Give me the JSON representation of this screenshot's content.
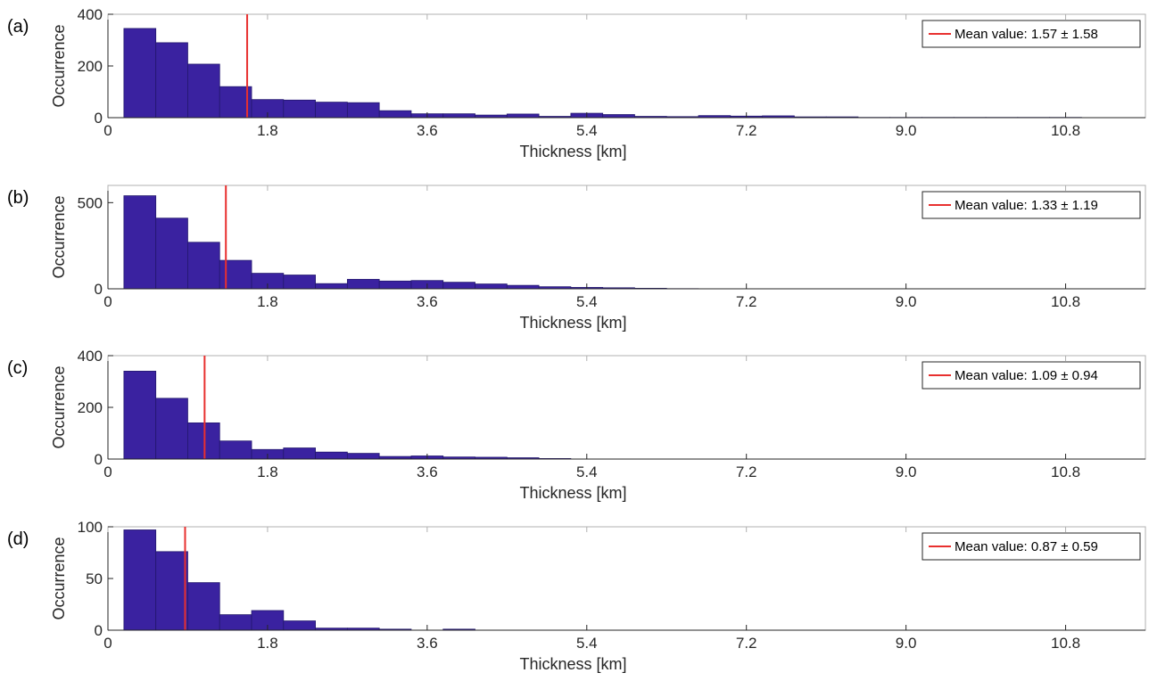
{
  "colors": {
    "bar_fill": "#3a22a0",
    "bar_edge": "#23186e",
    "mean_line": "#e8302f",
    "axis": "#262626",
    "frame": "#b0b0b0"
  },
  "chart_data": [
    {
      "type": "bar",
      "panel_label": "(a)",
      "xlabel": "Thickness [km]",
      "ylabel": "Occurrence",
      "xlim": [
        0,
        11.7
      ],
      "xticks": [
        0,
        1.8,
        3.6,
        5.4,
        7.2,
        9.0,
        10.8
      ],
      "xtick_labels": [
        "0",
        "1.8",
        "3.6",
        "5.4",
        "7.2",
        "9.0",
        "10.8"
      ],
      "ylim": [
        0,
        400
      ],
      "yticks": [
        0,
        200,
        400
      ],
      "ytick_labels": [
        "0",
        "200",
        "400"
      ],
      "bin_start": 0.18,
      "bin_width": 0.36,
      "values": [
        345,
        290,
        207,
        120,
        70,
        68,
        60,
        58,
        27,
        15,
        15,
        10,
        14,
        5,
        17,
        12,
        5,
        4,
        8,
        6,
        7,
        3,
        3,
        1,
        1,
        1,
        1,
        1,
        1,
        1,
        0,
        0
      ],
      "mean": 1.57,
      "legend": "Mean value: 1.57 ± 1.58",
      "legend_location": "top-right",
      "grid": false
    },
    {
      "type": "bar",
      "panel_label": "(b)",
      "xlabel": "Thickness [km]",
      "ylabel": "Occurrence",
      "xlim": [
        0,
        11.7
      ],
      "xticks": [
        0,
        1.8,
        3.6,
        5.4,
        7.2,
        9.0,
        10.8
      ],
      "xtick_labels": [
        "0",
        "1.8",
        "3.6",
        "5.4",
        "7.2",
        "9.0",
        "10.8"
      ],
      "ylim": [
        0,
        600
      ],
      "yticks": [
        0,
        500
      ],
      "ytick_labels": [
        "0",
        "500"
      ],
      "bin_start": 0.18,
      "bin_width": 0.36,
      "values": [
        540,
        410,
        270,
        165,
        90,
        80,
        30,
        55,
        45,
        48,
        38,
        28,
        20,
        12,
        8,
        6,
        3,
        1,
        0,
        0,
        0,
        0,
        0,
        0,
        0,
        0,
        0,
        0,
        0,
        0,
        0,
        0
      ],
      "mean": 1.33,
      "legend": "Mean value: 1.33 ± 1.19",
      "legend_location": "top-right",
      "grid": false
    },
    {
      "type": "bar",
      "panel_label": "(c)",
      "xlabel": "Thickness [km]",
      "ylabel": "Occurrence",
      "xlim": [
        0,
        11.7
      ],
      "xticks": [
        0,
        1.8,
        3.6,
        5.4,
        7.2,
        9.0,
        10.8
      ],
      "xtick_labels": [
        "0",
        "1.8",
        "3.6",
        "5.4",
        "7.2",
        "9.0",
        "10.8"
      ],
      "ylim": [
        0,
        400
      ],
      "yticks": [
        0,
        200,
        400
      ],
      "ytick_labels": [
        "0",
        "200",
        "400"
      ],
      "bin_start": 0.18,
      "bin_width": 0.36,
      "values": [
        340,
        235,
        140,
        70,
        37,
        43,
        27,
        22,
        10,
        12,
        8,
        7,
        5,
        2,
        0,
        0,
        0,
        0,
        0,
        0,
        0,
        0,
        0,
        0,
        0,
        0,
        0,
        0,
        0,
        0,
        0,
        0
      ],
      "mean": 1.09,
      "legend": "Mean value: 1.09 ± 0.94",
      "legend_location": "top-right",
      "grid": false
    },
    {
      "type": "bar",
      "panel_label": "(d)",
      "xlabel": "Thickness [km]",
      "ylabel": "Occurrence",
      "xlim": [
        0,
        11.7
      ],
      "xticks": [
        0,
        1.8,
        3.6,
        5.4,
        7.2,
        9.0,
        10.8
      ],
      "xtick_labels": [
        "0",
        "1.8",
        "3.6",
        "5.4",
        "7.2",
        "9.0",
        "10.8"
      ],
      "ylim": [
        0,
        100
      ],
      "yticks": [
        0,
        50,
        100
      ],
      "ytick_labels": [
        "0",
        "50",
        "100"
      ],
      "bin_start": 0.18,
      "bin_width": 0.36,
      "values": [
        97,
        76,
        46,
        15,
        19,
        9,
        2,
        2,
        1,
        0,
        1,
        0,
        0,
        0,
        0,
        0,
        0,
        0,
        0,
        0,
        0,
        0,
        0,
        0,
        0,
        0,
        0,
        0,
        0,
        0,
        0,
        0
      ],
      "mean": 0.87,
      "legend": "Mean value: 0.87 ± 0.59",
      "legend_location": "top-right",
      "grid": false
    }
  ]
}
